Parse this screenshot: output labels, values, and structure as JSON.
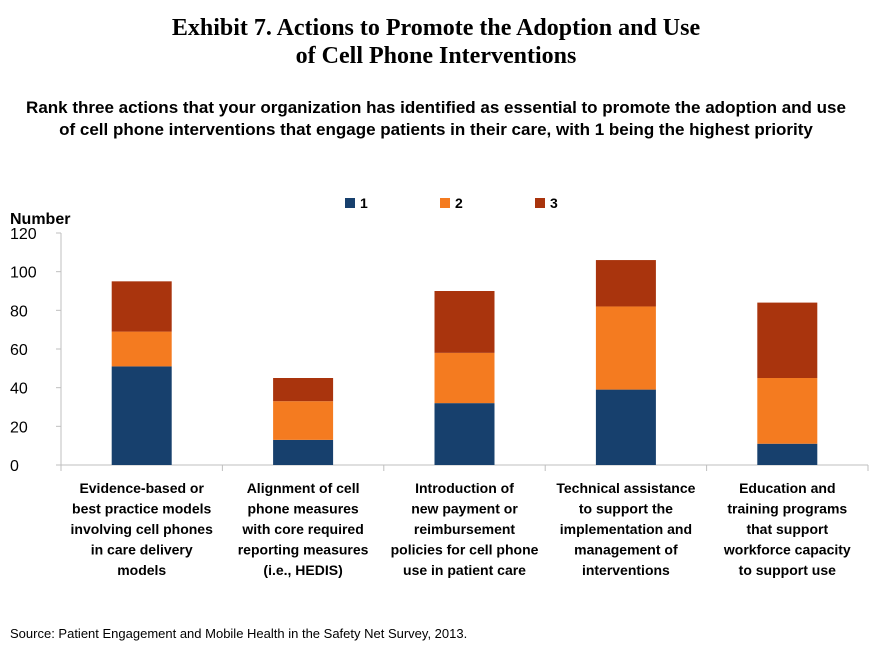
{
  "page": {
    "title_line1": "Exhibit 7. Actions to Promote the Adoption and Use",
    "title_line2": "of Cell Phone Interventions",
    "subtitle_line1": "Rank three actions that your organization has identified as essential to promote the adoption and use",
    "subtitle_line2": "of cell phone interventions that engage patients in their care, with 1 being the highest priority",
    "source": "Source: Patient Engagement and Mobile Health in the Safety Net Survey, 2013."
  },
  "chart_data": {
    "type": "bar",
    "stacked": true,
    "ylabel": "Number",
    "ylim": [
      0,
      120
    ],
    "yticks": [
      0,
      20,
      40,
      60,
      80,
      100,
      120
    ],
    "grid": false,
    "legend_position": "top-center",
    "categories": [
      [
        "Evidence-based or",
        "best practice models",
        "involving cell phones",
        "in care delivery",
        "models"
      ],
      [
        "Alignment of cell",
        "phone measures",
        "with core required",
        "reporting measures",
        "(i.e., HEDIS)"
      ],
      [
        "Introduction of",
        "new payment or",
        "reimbursement",
        "policies for cell phone",
        "use in patient care"
      ],
      [
        "Technical assistance",
        "to support the",
        "implementation and",
        "management of",
        "interventions"
      ],
      [
        "Education and",
        "training programs",
        "that support",
        "workforce capacity",
        "to support use"
      ]
    ],
    "series": [
      {
        "name": "1",
        "color": "#17406d",
        "values": [
          51,
          13,
          32,
          39,
          11
        ]
      },
      {
        "name": "2",
        "color": "#f47b20",
        "values": [
          18,
          20,
          26,
          43,
          34
        ]
      },
      {
        "name": "3",
        "color": "#a9340d",
        "values": [
          26,
          12,
          32,
          24,
          39
        ]
      }
    ]
  }
}
